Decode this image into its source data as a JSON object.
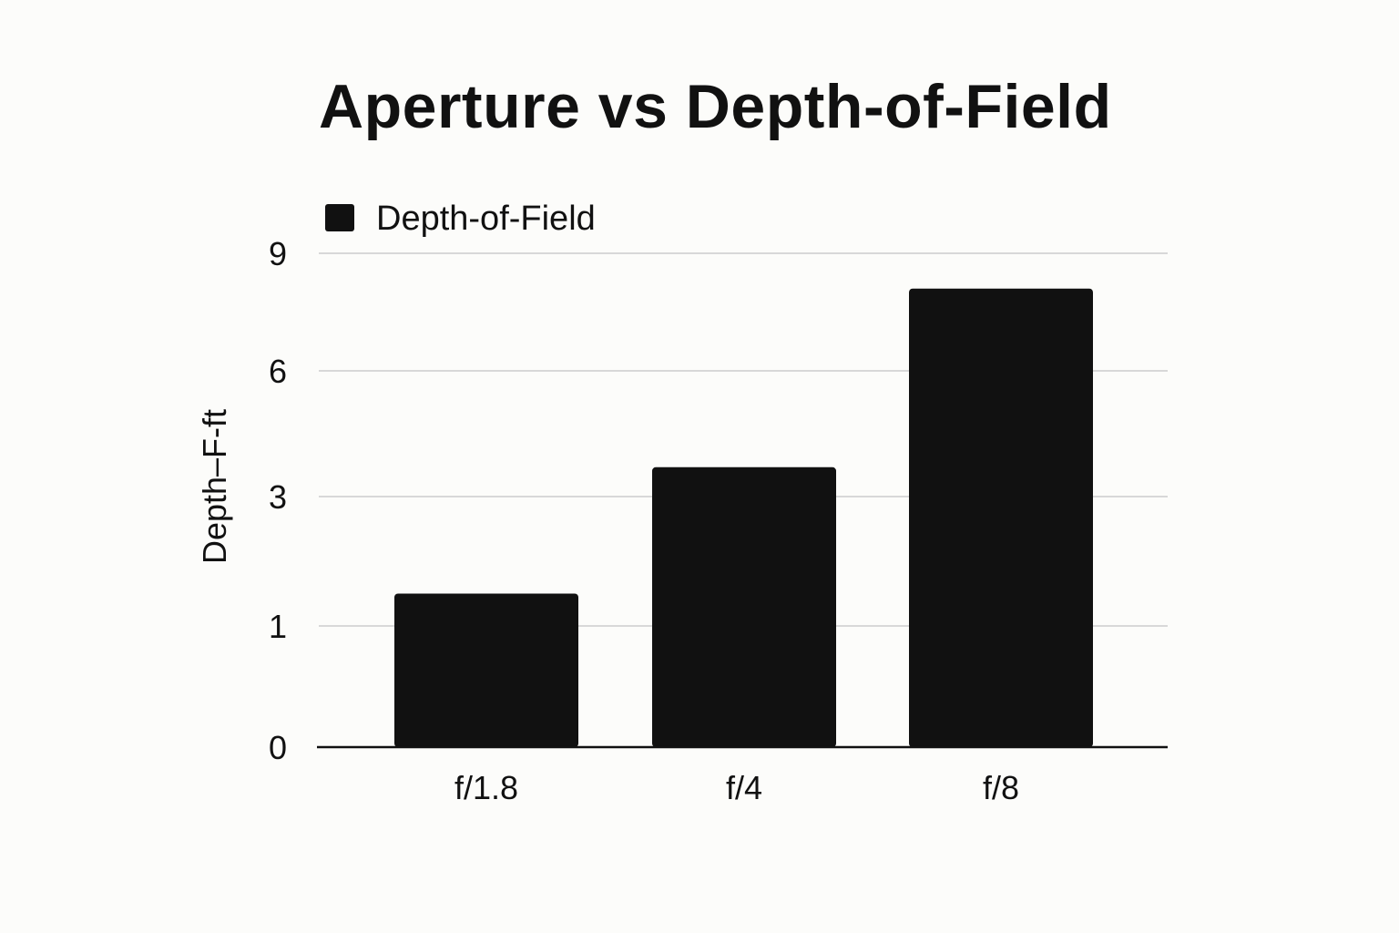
{
  "chart_data": {
    "type": "bar",
    "title": "Aperture vs Depth-of-Field",
    "xlabel": "",
    "ylabel": "Depth–F-ft",
    "categories": [
      "f/1.8",
      "f/4",
      "f/8"
    ],
    "series": [
      {
        "name": "Depth-of-Field",
        "values": [
          1.5,
          3.7,
          8.1
        ]
      }
    ],
    "yticks": [
      0,
      1,
      3,
      6,
      9
    ],
    "ylim": [
      0,
      9
    ],
    "grid": true,
    "legend": "top-left",
    "colors": {
      "bar": "#111111",
      "grid": "#cccccc",
      "axis": "#111111"
    }
  }
}
